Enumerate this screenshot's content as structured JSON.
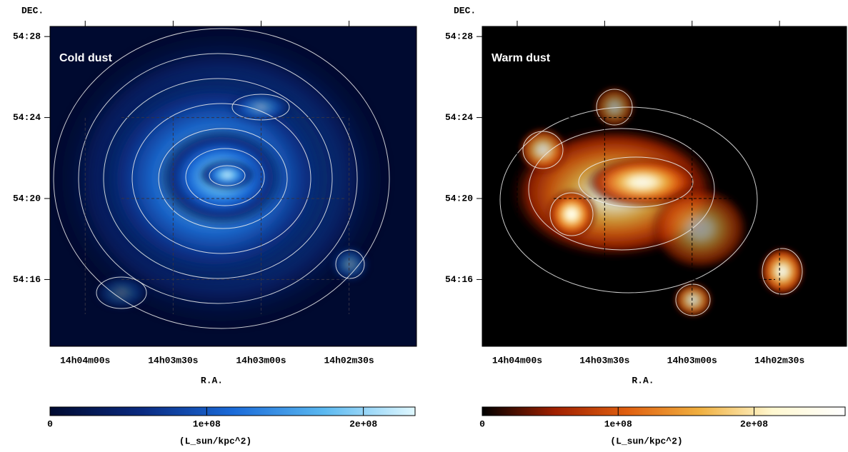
{
  "chart_data": [
    {
      "type": "image",
      "title": "Cold dust",
      "xlabel": "R.A.",
      "ylabel": "DEC.",
      "xlim": [
        50652,
        50527
      ],
      "ylim": [
        3252.7,
        3268.5
      ],
      "xticks": [
        {
          "value": 50640,
          "label": "14h04m00s"
        },
        {
          "value": 50610,
          "label": "14h03m30s"
        },
        {
          "value": 50580,
          "label": "14h03m00s"
        },
        {
          "value": 50550,
          "label": "14h02m30s"
        }
      ],
      "yticks": [
        {
          "value": 3268,
          "label": "54:28"
        },
        {
          "value": 3264,
          "label": "54:24"
        },
        {
          "value": 3260,
          "label": "54:20"
        },
        {
          "value": 3256,
          "label": "54:16"
        }
      ],
      "grid": true,
      "colorbar": {
        "label": "(L_sun/kpc^2)",
        "lim": [
          0,
          233000000
        ],
        "ticks": [
          0,
          {
            "value": 100000000,
            "label": "1e+08"
          },
          {
            "value": 200000000,
            "label": "2e+08"
          }
        ],
        "colormap": [
          "#000a30",
          "#0a2a80",
          "#1a6ad8",
          "#5ab8f0",
          "#e0f8ff"
        ]
      }
    },
    {
      "type": "image",
      "title": "Warm dust",
      "xlabel": "R.A.",
      "ylabel": "DEC.",
      "xlim": [
        50652,
        50527
      ],
      "ylim": [
        3252.7,
        3268.5
      ],
      "xticks": [
        {
          "value": 50640,
          "label": "14h04m00s"
        },
        {
          "value": 50610,
          "label": "14h03m30s"
        },
        {
          "value": 50580,
          "label": "14h03m00s"
        },
        {
          "value": 50550,
          "label": "14h02m30s"
        }
      ],
      "yticks": [
        {
          "value": 3268,
          "label": "54:28"
        },
        {
          "value": 3264,
          "label": "54:24"
        },
        {
          "value": 3260,
          "label": "54:20"
        },
        {
          "value": 3256,
          "label": "54:16"
        }
      ],
      "grid": true,
      "colorbar": {
        "label": "(L_sun/kpc^2)",
        "lim": [
          0,
          267000000
        ],
        "ticks": [
          0,
          {
            "value": 100000000,
            "label": "1e+08"
          },
          {
            "value": 200000000,
            "label": "2e+08"
          }
        ],
        "colormap": [
          "#000000",
          "#a02000",
          "#e06010",
          "#f0b040",
          "#fff8d0",
          "#ffffff"
        ]
      }
    }
  ]
}
